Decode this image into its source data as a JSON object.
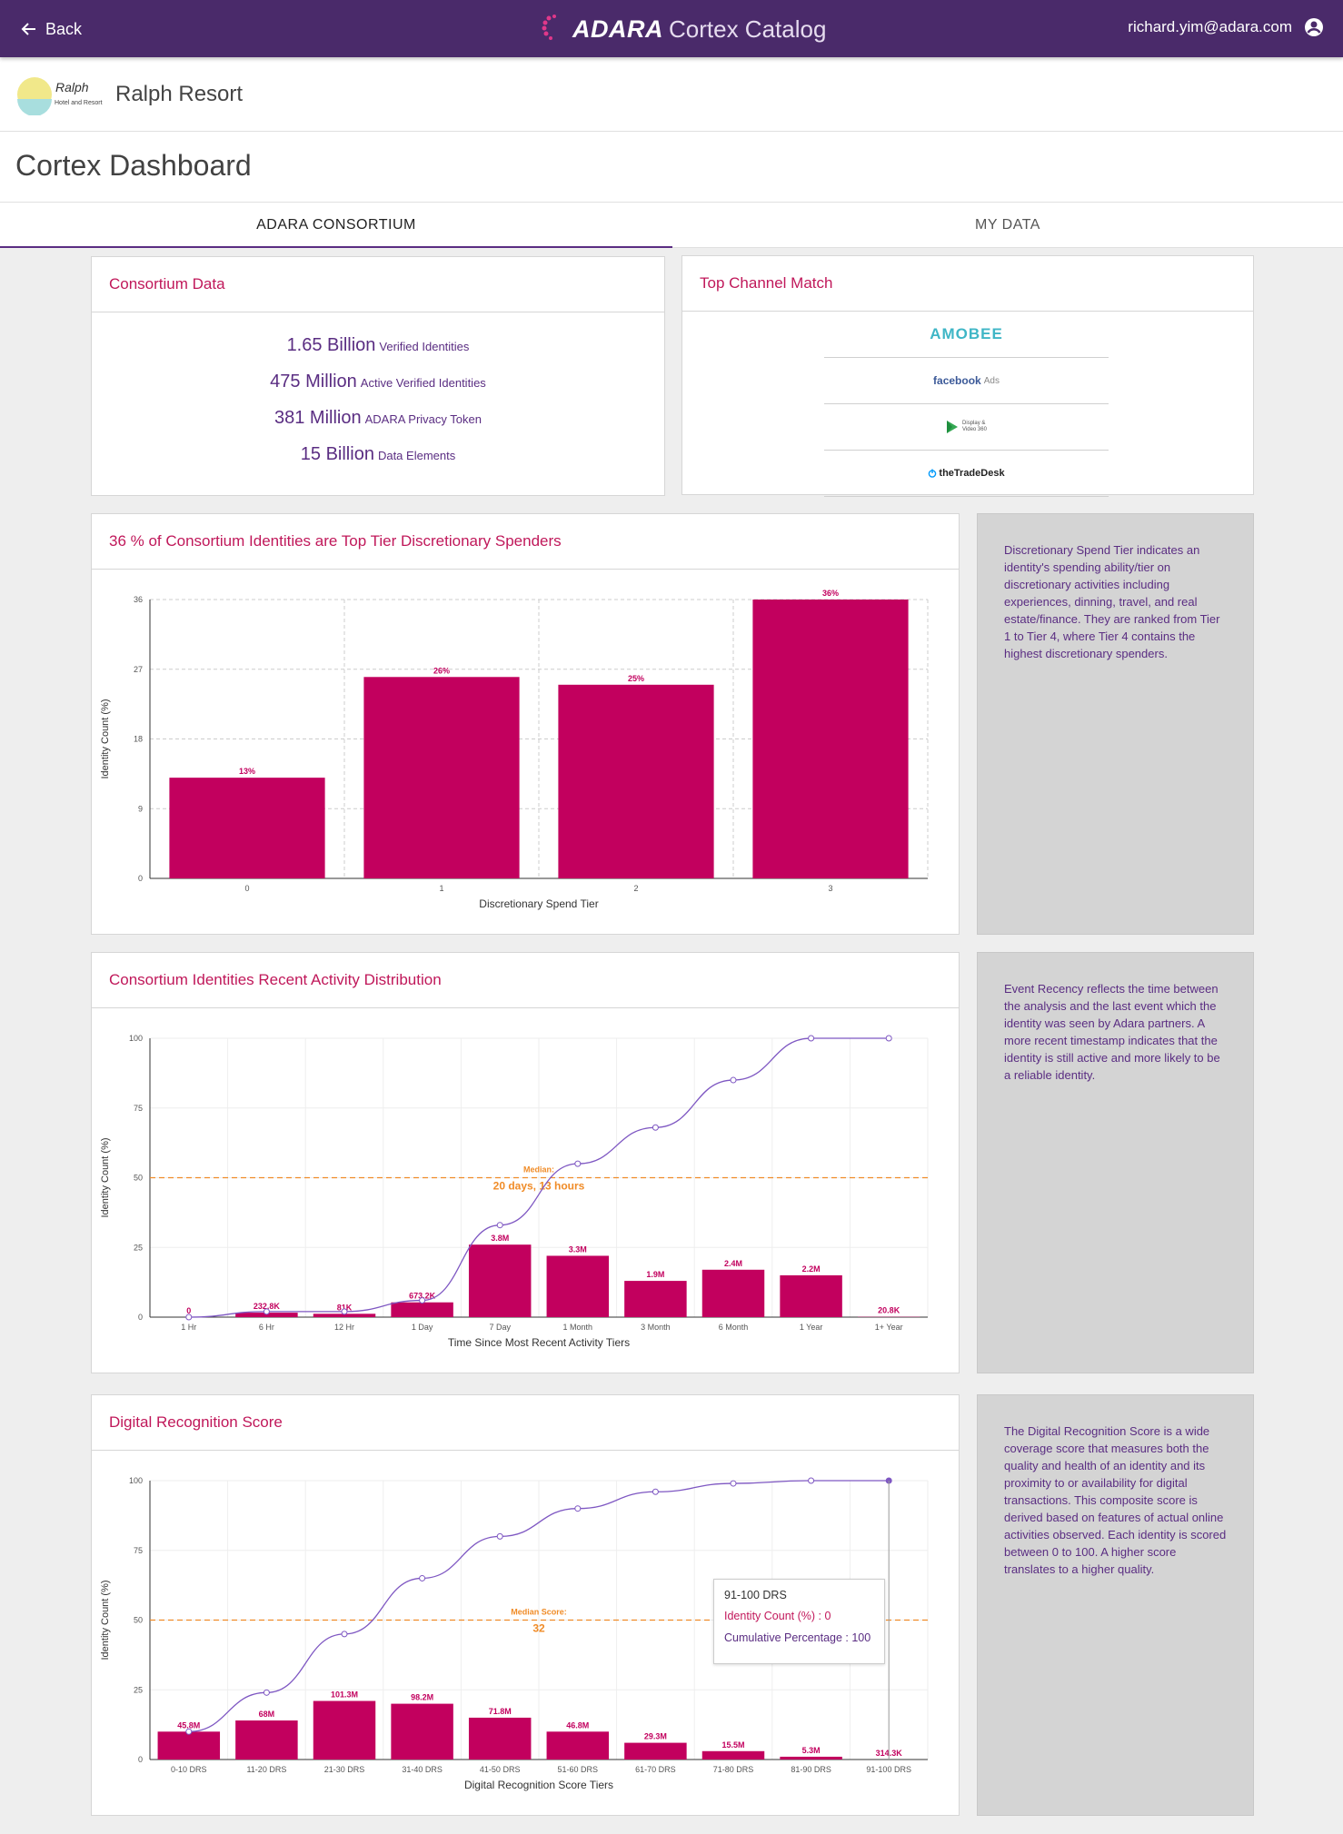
{
  "header": {
    "back_label": "Back",
    "brand_main": "ADARA",
    "brand_sub": "Cortex Catalog",
    "user_email": "richard.yim@adara.com"
  },
  "hotel": {
    "logo_script": "Ralph",
    "logo_caption": "Hotel and Resort",
    "name": "Ralph Resort"
  },
  "page_title": "Cortex Dashboard",
  "tabs": [
    {
      "label": "ADARA CONSORTIUM",
      "active": true
    },
    {
      "label": "MY DATA",
      "active": false
    }
  ],
  "consortium": {
    "title": "Consortium Data",
    "stats": [
      {
        "value": "1.65 Billion",
        "label": "Verified Identities"
      },
      {
        "value": "475 Million",
        "label": "Active Verified Identities"
      },
      {
        "value": "381 Million",
        "label": "ADARA Privacy Token"
      },
      {
        "value": "15 Billion",
        "label": "Data Elements"
      }
    ]
  },
  "top_channel": {
    "title": "Top Channel Match",
    "channels": [
      {
        "name": "AMOBEE"
      },
      {
        "name": "facebook",
        "suffix": "Ads"
      },
      {
        "name": "Display &",
        "name2": "Video 360"
      },
      {
        "name": "theTradeDesk"
      }
    ]
  },
  "spend_card": {
    "title": "36 % of Consortium Identities are Top Tier Discretionary Spenders",
    "info": "Discretionary Spend Tier indicates an identity's spending ability/tier on discretionary activities including experiences, dinning, travel, and real estate/finance. They are ranked from Tier 1 to Tier 4, where Tier 4 contains the highest discretionary spenders."
  },
  "recency_card": {
    "title": "Consortium Identities Recent Activity Distribution",
    "info": "Event Recency reflects the time between the analysis and the last event which the identity was seen by Adara partners. A more recent timestamp indicates that the identity is still active and more likely to be a reliable identity."
  },
  "drs_card": {
    "title": "Digital Recognition Score",
    "info": "The Digital Recognition Score is a wide coverage score that measures both the quality and health of an identity and its proximity to or availability for digital transactions. This composite score is derived based on features of actual online activities observed. Each identity is scored between 0 to 100. A higher score translates to a higher quality.",
    "tooltip": {
      "title": "91-100 DRS",
      "line1": "Identity Count (%) : 0",
      "line2": "Cumulative Percentage : 100"
    }
  },
  "chart_data": [
    {
      "type": "bar",
      "categories": [
        "0",
        "1",
        "2",
        "3"
      ],
      "values": [
        13,
        26,
        25,
        36
      ],
      "data_labels": [
        "13%",
        "26%",
        "25%",
        "36%"
      ],
      "yticks": [
        0,
        9,
        18,
        27,
        36
      ],
      "ylim": [
        0,
        36
      ],
      "xlabel": "Discretionary Spend Tier",
      "ylabel": "Identity Count (%)",
      "grid": true,
      "colors": {
        "bar": "#c2005e",
        "grid": "#cccccc"
      }
    },
    {
      "type": "bar",
      "categories": [
        "1 Hr",
        "6 Hr",
        "12 Hr",
        "1 Day",
        "7 Day",
        "1 Month",
        "3 Month",
        "6 Month",
        "1 Year",
        "1+ Year"
      ],
      "values": [
        0,
        1.6,
        1.2,
        5.3,
        26,
        22,
        13,
        17,
        15,
        0.1
      ],
      "data_labels": [
        "0",
        "232.8K",
        "81K",
        "673.2K",
        "3.8M",
        "3.3M",
        "1.9M",
        "2.4M",
        "2.2M",
        "20.8K"
      ],
      "cumulative": [
        0,
        2,
        2,
        6,
        33,
        55,
        68,
        85,
        100,
        100
      ],
      "yticks": [
        0,
        25,
        50,
        75,
        100
      ],
      "ylim": [
        0,
        100
      ],
      "median_line": 50,
      "median_label": "Median:",
      "median_value": "20 days, 13 hours",
      "xlabel": "Time Since Most Recent Activity Tiers",
      "ylabel": "Identity Count (%)",
      "grid": true,
      "colors": {
        "bar": "#c2005e",
        "line": "#7e57c2",
        "median": "#f08c28"
      }
    },
    {
      "type": "bar",
      "categories": [
        "0-10 DRS",
        "11-20 DRS",
        "21-30 DRS",
        "31-40 DRS",
        "41-50 DRS",
        "51-60 DRS",
        "61-70 DRS",
        "71-80 DRS",
        "81-90 DRS",
        "91-100 DRS"
      ],
      "values": [
        10,
        14,
        21,
        20,
        15,
        10,
        6,
        3,
        1,
        0
      ],
      "data_labels": [
        "45.8M",
        "68M",
        "101.3M",
        "98.2M",
        "71.8M",
        "46.8M",
        "29.3M",
        "15.5M",
        "5.3M",
        "314.3K"
      ],
      "cumulative": [
        10,
        24,
        45,
        65,
        80,
        90,
        96,
        99,
        100,
        100
      ],
      "yticks": [
        0,
        25,
        50,
        75,
        100
      ],
      "ylim": [
        0,
        100
      ],
      "median_line": 50,
      "median_label": "Median Score:",
      "median_value": "32",
      "xlabel": "Digital Recognition Score Tiers",
      "ylabel": "Identity Count (%)",
      "grid": true,
      "colors": {
        "bar": "#c2005e",
        "line": "#7e57c2",
        "median": "#f08c28"
      }
    }
  ]
}
